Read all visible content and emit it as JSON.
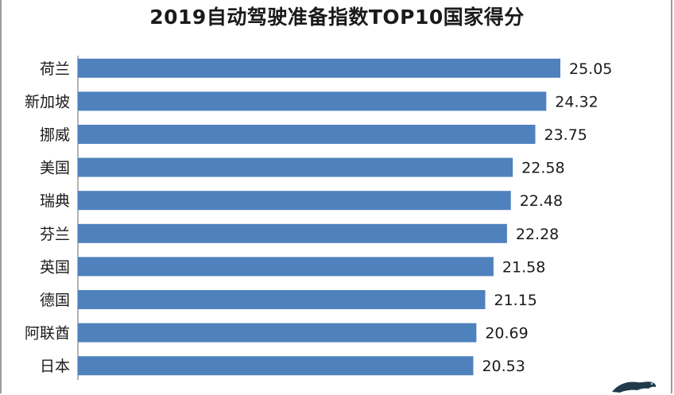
{
  "chart_data": {
    "type": "bar",
    "orientation": "horizontal",
    "title": "2019自动驾驶准备指数TOP10国家得分",
    "xlabel": "",
    "ylabel": "",
    "categories": [
      "荷兰",
      "新加坡",
      "挪威",
      "美国",
      "瑞典",
      "芬兰",
      "英国",
      "德国",
      "阿联酋",
      "日本"
    ],
    "values": [
      25.05,
      24.32,
      23.75,
      22.58,
      22.48,
      22.28,
      21.58,
      21.15,
      20.69,
      20.53
    ],
    "xlim": [
      0,
      27.3
    ],
    "value_labels": [
      "25.05",
      "24.32",
      "23.75",
      "22.58",
      "22.48",
      "22.28",
      "21.58",
      "21.15",
      "20.69",
      "20.53"
    ],
    "bar_color": "#4f81bd",
    "grid": false,
    "legend": "none"
  }
}
